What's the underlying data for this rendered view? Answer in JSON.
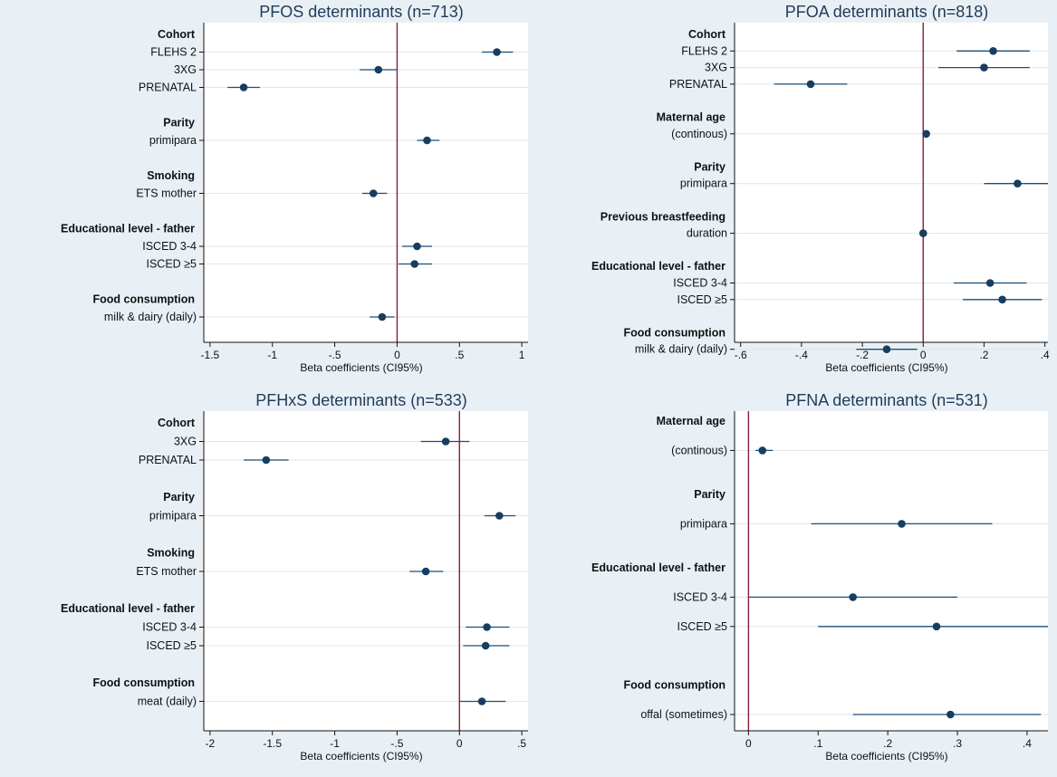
{
  "colors": {
    "background": "#e9f0f5",
    "plot_area": "#ffffff",
    "marker": "#173d5f",
    "ci_line": "#1c4e78",
    "reference_line": "#8e1b3a",
    "gridline": "#dbe6ee",
    "title": "#1f3b5a"
  },
  "chart_data": [
    {
      "type": "scatter",
      "title": "PFOS determinants (n=713)",
      "xlabel": "Beta coefficients (CI95%)",
      "xlim": [
        -1.55,
        1.05
      ],
      "xticks": [
        -1.5,
        -1,
        -0.5,
        0,
        0.5,
        1
      ],
      "xtick_labels": [
        "-1.5",
        "-1",
        "-.5",
        "0",
        ".5",
        "1"
      ],
      "reference_x": 0,
      "rows": [
        {
          "kind": "group",
          "label": "Cohort"
        },
        {
          "kind": "item",
          "label": "FLEHS 2",
          "estimate": 0.8,
          "ci": [
            0.68,
            0.93
          ]
        },
        {
          "kind": "item",
          "label": "3XG",
          "estimate": -0.15,
          "ci": [
            -0.3,
            0.0
          ]
        },
        {
          "kind": "item",
          "label": "PRENATAL",
          "estimate": -1.23,
          "ci": [
            -1.36,
            -1.1
          ]
        },
        {
          "kind": "gap"
        },
        {
          "kind": "group",
          "label": "Parity"
        },
        {
          "kind": "item",
          "label": "primipara",
          "estimate": 0.24,
          "ci": [
            0.16,
            0.34
          ]
        },
        {
          "kind": "gap"
        },
        {
          "kind": "group",
          "label": "Smoking"
        },
        {
          "kind": "item",
          "label": "ETS mother",
          "estimate": -0.19,
          "ci": [
            -0.28,
            -0.08
          ]
        },
        {
          "kind": "gap"
        },
        {
          "kind": "group",
          "label": "Educational level - father"
        },
        {
          "kind": "item",
          "label": "ISCED 3-4",
          "estimate": 0.16,
          "ci": [
            0.04,
            0.28
          ]
        },
        {
          "kind": "item",
          "label": "ISCED ≥5",
          "estimate": 0.14,
          "ci": [
            0.01,
            0.28
          ]
        },
        {
          "kind": "gap"
        },
        {
          "kind": "group",
          "label": "Food consumption"
        },
        {
          "kind": "item",
          "label": "milk & dairy (daily)",
          "estimate": -0.12,
          "ci": [
            -0.22,
            -0.02
          ]
        }
      ]
    },
    {
      "type": "scatter",
      "title": "PFOA determinants (n=818)",
      "xlabel": "Beta coefficients (CI95%)",
      "xlim": [
        -0.62,
        0.41
      ],
      "xticks": [
        -0.6,
        -0.4,
        -0.2,
        0,
        0.2,
        0.4
      ],
      "xtick_labels": [
        "-.6",
        "-.4",
        "-.2",
        "0",
        ".2",
        ".4"
      ],
      "reference_x": 0,
      "rows": [
        {
          "kind": "group",
          "label": "Cohort"
        },
        {
          "kind": "item",
          "label": "FLEHS 2",
          "estimate": 0.23,
          "ci": [
            0.11,
            0.35
          ]
        },
        {
          "kind": "item",
          "label": "3XG",
          "estimate": 0.2,
          "ci": [
            0.05,
            0.35
          ]
        },
        {
          "kind": "item",
          "label": "PRENATAL",
          "estimate": -0.37,
          "ci": [
            -0.49,
            -0.25
          ]
        },
        {
          "kind": "gap"
        },
        {
          "kind": "group",
          "label": "Maternal age"
        },
        {
          "kind": "item",
          "label": "(continous)",
          "estimate": 0.01,
          "ci": [
            0.0,
            0.02
          ]
        },
        {
          "kind": "gap"
        },
        {
          "kind": "group",
          "label": "Parity"
        },
        {
          "kind": "item",
          "label": "primipara",
          "estimate": 0.31,
          "ci": [
            0.2,
            0.41
          ]
        },
        {
          "kind": "gap"
        },
        {
          "kind": "group",
          "label": "Previous breastfeeding"
        },
        {
          "kind": "item",
          "label": "duration",
          "estimate": 0.0,
          "ci": [
            -0.005,
            0.005
          ]
        },
        {
          "kind": "gap"
        },
        {
          "kind": "group",
          "label": "Educational level - father"
        },
        {
          "kind": "item",
          "label": "ISCED 3-4",
          "estimate": 0.22,
          "ci": [
            0.1,
            0.34
          ]
        },
        {
          "kind": "item",
          "label": "ISCED ≥5",
          "estimate": 0.26,
          "ci": [
            0.13,
            0.39
          ]
        },
        {
          "kind": "gap"
        },
        {
          "kind": "group",
          "label": "Food consumption"
        },
        {
          "kind": "item",
          "label": "milk & dairy (daily)",
          "estimate": -0.12,
          "ci": [
            -0.22,
            -0.02
          ]
        }
      ]
    },
    {
      "type": "scatter",
      "title": "PFHxS determinants (n=533)",
      "xlabel": "Beta coefficients (CI95%)",
      "xlim": [
        -2.05,
        0.55
      ],
      "xticks": [
        -2,
        -1.5,
        -1,
        -0.5,
        0,
        0.5
      ],
      "xtick_labels": [
        "-2",
        "-1.5",
        "-1",
        "-.5",
        "0",
        ".5"
      ],
      "reference_x": 0,
      "rows": [
        {
          "kind": "group",
          "label": "Cohort"
        },
        {
          "kind": "item",
          "label": "3XG",
          "estimate": -0.11,
          "ci": [
            -0.31,
            0.08
          ]
        },
        {
          "kind": "item",
          "label": "PRENATAL",
          "estimate": -1.55,
          "ci": [
            -1.73,
            -1.37
          ]
        },
        {
          "kind": "gap"
        },
        {
          "kind": "group",
          "label": "Parity"
        },
        {
          "kind": "item",
          "label": "primipara",
          "estimate": 0.32,
          "ci": [
            0.2,
            0.45
          ]
        },
        {
          "kind": "gap"
        },
        {
          "kind": "group",
          "label": "Smoking"
        },
        {
          "kind": "item",
          "label": "ETS mother",
          "estimate": -0.27,
          "ci": [
            -0.4,
            -0.13
          ]
        },
        {
          "kind": "gap"
        },
        {
          "kind": "group",
          "label": "Educational level - father"
        },
        {
          "kind": "item",
          "label": "ISCED 3-4",
          "estimate": 0.22,
          "ci": [
            0.05,
            0.4
          ]
        },
        {
          "kind": "item",
          "label": "ISCED ≥5",
          "estimate": 0.21,
          "ci": [
            0.03,
            0.4
          ]
        },
        {
          "kind": "gap"
        },
        {
          "kind": "group",
          "label": "Food consumption"
        },
        {
          "kind": "item",
          "label": "meat (daily)",
          "estimate": 0.18,
          "ci": [
            0.0,
            0.37
          ]
        }
      ]
    },
    {
      "type": "scatter",
      "title": "PFNA determinants (n=531)",
      "xlabel": "Beta coefficients (CI95%)",
      "xlim": [
        -0.02,
        0.43
      ],
      "xticks": [
        0,
        0.1,
        0.2,
        0.3,
        0.4
      ],
      "xtick_labels": [
        "0",
        ".1",
        ".2",
        ".3",
        ".4"
      ],
      "reference_x": 0,
      "rows": [
        {
          "kind": "group",
          "label": "Maternal age"
        },
        {
          "kind": "gap"
        },
        {
          "kind": "item",
          "label": "(continous)",
          "estimate": 0.02,
          "ci": [
            0.01,
            0.035
          ]
        },
        {
          "kind": "gap"
        },
        {
          "kind": "gap"
        },
        {
          "kind": "group",
          "label": "Parity"
        },
        {
          "kind": "gap"
        },
        {
          "kind": "item",
          "label": "primipara",
          "estimate": 0.22,
          "ci": [
            0.09,
            0.35
          ]
        },
        {
          "kind": "gap"
        },
        {
          "kind": "gap"
        },
        {
          "kind": "group",
          "label": "Educational level - father"
        },
        {
          "kind": "gap"
        },
        {
          "kind": "item",
          "label": "ISCED 3-4",
          "estimate": 0.15,
          "ci": [
            0.0,
            0.3
          ]
        },
        {
          "kind": "gap"
        },
        {
          "kind": "item",
          "label": "ISCED ≥5",
          "estimate": 0.27,
          "ci": [
            0.1,
            0.43
          ]
        },
        {
          "kind": "gap"
        },
        {
          "kind": "gap"
        },
        {
          "kind": "gap"
        },
        {
          "kind": "group",
          "label": "Food consumption"
        },
        {
          "kind": "gap"
        },
        {
          "kind": "item",
          "label": "offal (sometimes)",
          "estimate": 0.29,
          "ci": [
            0.15,
            0.42
          ]
        }
      ]
    }
  ]
}
